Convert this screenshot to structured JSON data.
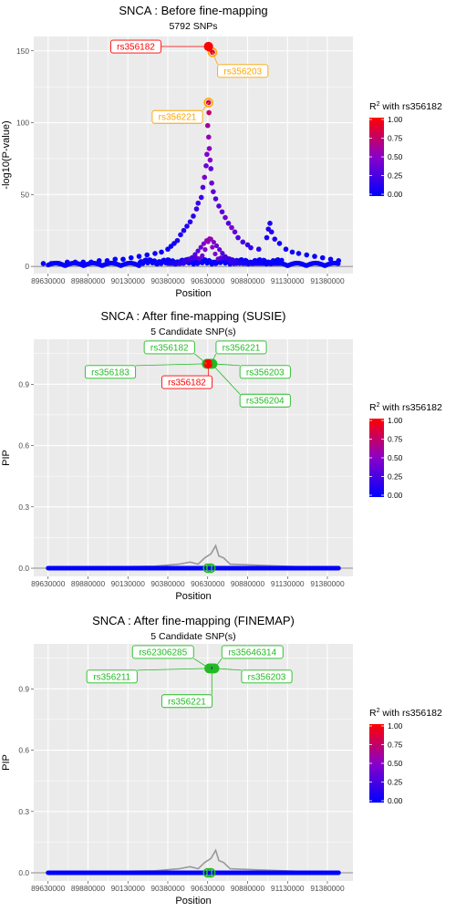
{
  "colors": {
    "panel_bg": "#ebebeb",
    "grid": "#ffffff",
    "low": "#0000ff",
    "high": "#ff0000",
    "lead": "#ff0000",
    "lead_ring": "#ffa500",
    "candidate": "#22bb22",
    "pip_line": "#999999"
  },
  "legend": {
    "title_prefix": "R",
    "title_sup": "2",
    "title_suffix": " with rs356182",
    "ticks": [
      "1.00",
      "0.75",
      "0.50",
      "0.25",
      "0.00"
    ]
  },
  "chart_data": [
    {
      "type": "scatter",
      "title": "SNCA : Before fine-mapping",
      "subtitle": "5792 SNPs",
      "xlabel": "Position",
      "ylabel": "-log10(P-value)",
      "ylim": [
        -5,
        160
      ],
      "yticks": [
        0,
        50,
        100,
        150
      ],
      "xlim": [
        89540000,
        91540000
      ],
      "xticks": [
        89630000,
        89880000,
        90130000,
        90380000,
        90630000,
        90880000,
        91130000,
        91380000
      ],
      "xtick_labels": [
        "89630000",
        "89880000",
        "90130000",
        "90380000",
        "90630000",
        "90880000",
        "91130000",
        "91380000"
      ],
      "grid": true,
      "legend_position": "right",
      "points": [
        {
          "x": 90635000,
          "y": 153,
          "r2": 1.0
        },
        {
          "x": 90640000,
          "y": 151,
          "r2": 0.95
        },
        {
          "x": 90660000,
          "y": 149,
          "r2": 0.85
        },
        {
          "x": 90635000,
          "y": 114,
          "r2": 0.8
        },
        {
          "x": 90638000,
          "y": 107,
          "r2": 0.75
        },
        {
          "x": 90630000,
          "y": 98,
          "r2": 0.6
        },
        {
          "x": 90636000,
          "y": 90,
          "r2": 0.55
        },
        {
          "x": 90640000,
          "y": 82,
          "r2": 0.5
        },
        {
          "x": 90625000,
          "y": 78,
          "r2": 0.45
        },
        {
          "x": 90645000,
          "y": 74,
          "r2": 0.5
        },
        {
          "x": 90620000,
          "y": 70,
          "r2": 0.4
        },
        {
          "x": 90650000,
          "y": 68,
          "r2": 0.35
        },
        {
          "x": 90610000,
          "y": 62,
          "r2": 0.45
        },
        {
          "x": 90655000,
          "y": 58,
          "r2": 0.4
        },
        {
          "x": 90600000,
          "y": 55,
          "r2": 0.3
        },
        {
          "x": 90665000,
          "y": 52,
          "r2": 0.35
        },
        {
          "x": 90590000,
          "y": 48,
          "r2": 0.25
        },
        {
          "x": 90680000,
          "y": 47,
          "r2": 0.3
        },
        {
          "x": 90570000,
          "y": 44,
          "r2": 0.2
        },
        {
          "x": 90700000,
          "y": 42,
          "r2": 0.3
        },
        {
          "x": 90560000,
          "y": 40,
          "r2": 0.2
        },
        {
          "x": 90720000,
          "y": 38,
          "r2": 0.35
        },
        {
          "x": 90540000,
          "y": 35,
          "r2": 0.15
        },
        {
          "x": 90740000,
          "y": 34,
          "r2": 0.4
        },
        {
          "x": 90520000,
          "y": 31,
          "r2": 0.15
        },
        {
          "x": 90760000,
          "y": 30,
          "r2": 0.3
        },
        {
          "x": 90500000,
          "y": 28,
          "r2": 0.1
        },
        {
          "x": 90780000,
          "y": 27,
          "r2": 0.45
        },
        {
          "x": 90480000,
          "y": 25,
          "r2": 0.1
        },
        {
          "x": 90800000,
          "y": 24,
          "r2": 0.35
        },
        {
          "x": 90460000,
          "y": 22,
          "r2": 0.1
        },
        {
          "x": 90820000,
          "y": 20,
          "r2": 0.3
        },
        {
          "x": 90440000,
          "y": 18,
          "r2": 0.08
        },
        {
          "x": 90850000,
          "y": 17,
          "r2": 0.25
        },
        {
          "x": 90420000,
          "y": 16,
          "r2": 0.05
        },
        {
          "x": 90880000,
          "y": 15,
          "r2": 0.2
        },
        {
          "x": 90400000,
          "y": 14,
          "r2": 0.05
        },
        {
          "x": 91020000,
          "y": 30,
          "r2": 0.1
        },
        {
          "x": 91010000,
          "y": 26,
          "r2": 0.1
        },
        {
          "x": 91030000,
          "y": 24,
          "r2": 0.15
        },
        {
          "x": 91000000,
          "y": 20,
          "r2": 0.1
        },
        {
          "x": 91050000,
          "y": 19,
          "r2": 0.1
        },
        {
          "x": 91080000,
          "y": 16,
          "r2": 0.05
        },
        {
          "x": 90380000,
          "y": 12,
          "r2": 0.05
        },
        {
          "x": 90900000,
          "y": 13,
          "r2": 0.2
        },
        {
          "x": 90950000,
          "y": 12,
          "r2": 0.15
        },
        {
          "x": 91120000,
          "y": 12,
          "r2": 0.05
        },
        {
          "x": 90340000,
          "y": 10,
          "r2": 0.05
        },
        {
          "x": 90300000,
          "y": 9,
          "r2": 0.05
        },
        {
          "x": 91160000,
          "y": 10,
          "r2": 0.05
        },
        {
          "x": 91200000,
          "y": 9,
          "r2": 0.05
        },
        {
          "x": 90250000,
          "y": 8,
          "r2": 0.03
        },
        {
          "x": 91250000,
          "y": 8,
          "r2": 0.03
        },
        {
          "x": 90200000,
          "y": 7,
          "r2": 0.03
        },
        {
          "x": 91300000,
          "y": 7,
          "r2": 0.03
        },
        {
          "x": 90150000,
          "y": 6,
          "r2": 0.02
        },
        {
          "x": 91350000,
          "y": 6,
          "r2": 0.02
        },
        {
          "x": 90100000,
          "y": 5,
          "r2": 0.02
        },
        {
          "x": 91400000,
          "y": 5,
          "r2": 0.02
        },
        {
          "x": 90050000,
          "y": 5,
          "r2": 0.02
        },
        {
          "x": 91450000,
          "y": 4,
          "r2": 0.02
        },
        {
          "x": 90000000,
          "y": 4,
          "r2": 0.02
        },
        {
          "x": 89950000,
          "y": 4,
          "r2": 0.02
        },
        {
          "x": 89900000,
          "y": 3,
          "r2": 0.02
        },
        {
          "x": 89850000,
          "y": 3,
          "r2": 0.02
        },
        {
          "x": 89800000,
          "y": 3,
          "r2": 0.02
        },
        {
          "x": 89750000,
          "y": 3,
          "r2": 0.02
        },
        {
          "x": 89700000,
          "y": 2,
          "r2": 0.02
        },
        {
          "x": 89650000,
          "y": 2,
          "r2": 0.02
        },
        {
          "x": 89600000,
          "y": 2,
          "r2": 0.02
        }
      ],
      "lead": {
        "x": 90635000,
        "y": 153
      },
      "ringed": [
        {
          "x": 90660000,
          "y": 149
        },
        {
          "x": 90635000,
          "y": 114
        }
      ],
      "labels": [
        {
          "text": "rs356182",
          "color": "#ff0000",
          "point": {
            "x": 90635000,
            "y": 153
          },
          "box": {
            "x": 90180000,
            "y": 153
          }
        },
        {
          "text": "rs356203",
          "color": "#ffa500",
          "point": {
            "x": 90660000,
            "y": 149
          },
          "box": {
            "x": 90850000,
            "y": 136
          }
        },
        {
          "text": "rs356221",
          "color": "#ffa500",
          "point": {
            "x": 90635000,
            "y": 114
          },
          "box": {
            "x": 90440000,
            "y": 104
          }
        }
      ]
    },
    {
      "type": "scatter",
      "title": "SNCA : After fine-mapping (SUSIE)",
      "subtitle": "5 Candidate SNP(s)",
      "xlabel": "Position",
      "ylabel": "PIP",
      "ylim": [
        -0.04,
        1.12
      ],
      "yticks": [
        0.0,
        0.3,
        0.6,
        0.9
      ],
      "ytick_labels": [
        "0.0",
        "0.3",
        "0.6",
        "0.9"
      ],
      "xlim": [
        89540000,
        91540000
      ],
      "xticks": [
        89630000,
        89880000,
        90130000,
        90380000,
        90630000,
        90880000,
        91130000,
        91380000
      ],
      "xtick_labels": [
        "89630000",
        "89880000",
        "90130000",
        "90380000",
        "90630000",
        "90880000",
        "91130000",
        "91380000"
      ],
      "grid": true,
      "legend_position": "right",
      "pip_line": [
        {
          "x": 89630000,
          "y": 0.0
        },
        {
          "x": 90300000,
          "y": 0.01
        },
        {
          "x": 90450000,
          "y": 0.02
        },
        {
          "x": 90520000,
          "y": 0.03
        },
        {
          "x": 90570000,
          "y": 0.02
        },
        {
          "x": 90610000,
          "y": 0.05
        },
        {
          "x": 90650000,
          "y": 0.07
        },
        {
          "x": 90680000,
          "y": 0.11
        },
        {
          "x": 90700000,
          "y": 0.06
        },
        {
          "x": 90730000,
          "y": 0.05
        },
        {
          "x": 90770000,
          "y": 0.02
        },
        {
          "x": 91450000,
          "y": 0.0
        }
      ],
      "zero_band": {
        "from": 89630000,
        "to": 91450000
      },
      "points": [
        {
          "x": 90624000,
          "y": 1.0,
          "r2": 0.95
        },
        {
          "x": 90633000,
          "y": 1.0,
          "r2": 1.0
        },
        {
          "x": 90642000,
          "y": 1.0,
          "r2": 0.9
        },
        {
          "x": 90651000,
          "y": 1.0,
          "r2": 0.85
        },
        {
          "x": 90660000,
          "y": 1.0,
          "r2": 0.8
        }
      ],
      "candidates": [
        {
          "x": 90624000,
          "y": 1.0
        },
        {
          "x": 90633000,
          "y": 1.0
        },
        {
          "x": 90642000,
          "y": 1.0
        },
        {
          "x": 90651000,
          "y": 1.0
        },
        {
          "x": 90660000,
          "y": 1.0
        }
      ],
      "zero_markers": [
        {
          "x": 90630000,
          "y": 0.0
        },
        {
          "x": 90650000,
          "y": 0.0
        }
      ],
      "lead": {
        "x": 90633000,
        "y": 1.0
      },
      "labels": [
        {
          "text": "rs356182",
          "color": "#22bb22",
          "point": {
            "x": 90624000,
            "y": 1.0
          },
          "box": {
            "x": 90390000,
            "y": 1.08
          }
        },
        {
          "text": "rs356221",
          "color": "#22bb22",
          "point": {
            "x": 90651000,
            "y": 1.0
          },
          "box": {
            "x": 90840000,
            "y": 1.08
          }
        },
        {
          "text": "rs356183",
          "color": "#22bb22",
          "point": {
            "x": 90620000,
            "y": 1.0
          },
          "box": {
            "x": 90020000,
            "y": 0.96
          }
        },
        {
          "text": "rs356203",
          "color": "#22bb22",
          "point": {
            "x": 90660000,
            "y": 1.0
          },
          "box": {
            "x": 90990000,
            "y": 0.96
          }
        },
        {
          "text": "rs356182",
          "color": "#ff0000",
          "point": {
            "x": 90633000,
            "y": 1.0
          },
          "box": {
            "x": 90500000,
            "y": 0.91
          }
        },
        {
          "text": "rs356204",
          "color": "#22bb22",
          "point": {
            "x": 90655000,
            "y": 1.0
          },
          "box": {
            "x": 90990000,
            "y": 0.82
          }
        }
      ]
    },
    {
      "type": "scatter",
      "title": "SNCA : After fine-mapping (FINEMAP)",
      "subtitle": "5 Candidate SNP(s)",
      "xlabel": "Position",
      "ylabel": "PIP",
      "ylim": [
        -0.04,
        1.12
      ],
      "yticks": [
        0.0,
        0.3,
        0.6,
        0.9
      ],
      "ytick_labels": [
        "0.0",
        "0.3",
        "0.6",
        "0.9"
      ],
      "xlim": [
        89540000,
        91540000
      ],
      "xticks": [
        89630000,
        89880000,
        90130000,
        90380000,
        90630000,
        90880000,
        91130000,
        91380000
      ],
      "xtick_labels": [
        "89630000",
        "89880000",
        "90130000",
        "90380000",
        "90630000",
        "90880000",
        "91130000",
        "91380000"
      ],
      "grid": true,
      "legend_position": "right",
      "pip_line": [
        {
          "x": 89630000,
          "y": 0.0
        },
        {
          "x": 90300000,
          "y": 0.01
        },
        {
          "x": 90450000,
          "y": 0.02
        },
        {
          "x": 90520000,
          "y": 0.03
        },
        {
          "x": 90570000,
          "y": 0.02
        },
        {
          "x": 90610000,
          "y": 0.05
        },
        {
          "x": 90650000,
          "y": 0.07
        },
        {
          "x": 90680000,
          "y": 0.11
        },
        {
          "x": 90700000,
          "y": 0.06
        },
        {
          "x": 90730000,
          "y": 0.05
        },
        {
          "x": 90770000,
          "y": 0.02
        },
        {
          "x": 91450000,
          "y": 0.0
        }
      ],
      "zero_band": {
        "from": 89630000,
        "to": 91450000
      },
      "points": [
        {
          "x": 90640000,
          "y": 1.0,
          "r2": 0.3
        },
        {
          "x": 90648000,
          "y": 1.0,
          "r2": 0.2
        },
        {
          "x": 90656000,
          "y": 1.0,
          "r2": 0.3
        },
        {
          "x": 90664000,
          "y": 1.0,
          "r2": 0.2
        },
        {
          "x": 90672000,
          "y": 1.0,
          "r2": 0.25
        }
      ],
      "candidates": [
        {
          "x": 90640000,
          "y": 1.0
        },
        {
          "x": 90648000,
          "y": 1.0
        },
        {
          "x": 90656000,
          "y": 1.0
        },
        {
          "x": 90664000,
          "y": 1.0
        },
        {
          "x": 90672000,
          "y": 1.0
        }
      ],
      "zero_markers": [
        {
          "x": 90630000,
          "y": 0.0
        },
        {
          "x": 90650000,
          "y": 0.0
        }
      ],
      "labels": [
        {
          "text": "rs62306285",
          "color": "#22bb22",
          "point": {
            "x": 90640000,
            "y": 1.0
          },
          "box": {
            "x": 90350000,
            "y": 1.08
          }
        },
        {
          "text": "rs35646314",
          "color": "#22bb22",
          "point": {
            "x": 90672000,
            "y": 1.0
          },
          "box": {
            "x": 90910000,
            "y": 1.08
          }
        },
        {
          "text": "rs356211",
          "color": "#22bb22",
          "point": {
            "x": 90640000,
            "y": 1.0
          },
          "box": {
            "x": 90030000,
            "y": 0.96
          }
        },
        {
          "text": "rs356203",
          "color": "#22bb22",
          "point": {
            "x": 90672000,
            "y": 1.0
          },
          "box": {
            "x": 91000000,
            "y": 0.96
          }
        },
        {
          "text": "rs356221",
          "color": "#22bb22",
          "point": {
            "x": 90656000,
            "y": 1.0
          },
          "box": {
            "x": 90500000,
            "y": 0.84
          }
        }
      ]
    }
  ]
}
